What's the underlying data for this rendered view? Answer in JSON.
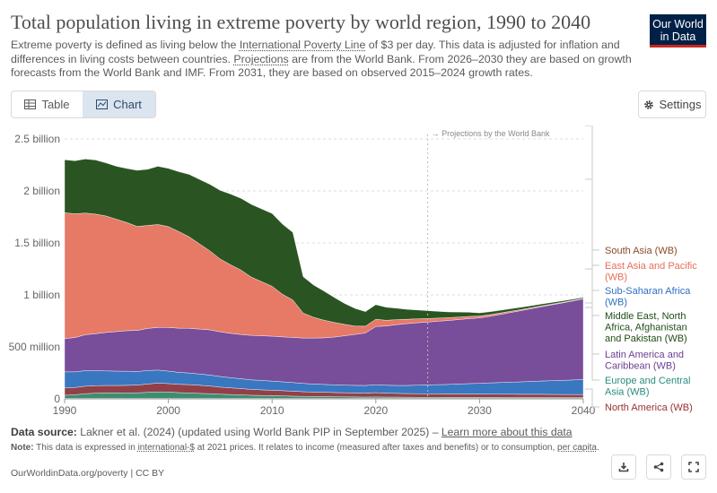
{
  "header": {
    "title": "Total population living in extreme poverty by world region, 1990 to 2040",
    "subtitle_1": "Extreme poverty is defined as living below the ",
    "subtitle_link_1": "International Poverty Line",
    "subtitle_2": " of $3 per day. This data is adjusted for inflation and differences in living costs between countries. ",
    "subtitle_link_2": "Projections",
    "subtitle_3": " are from the World Bank. From 2026–2030 they are based on growth forecasts from the World Bank and IMF. From 2031, they are based on observed 2015–2024 growth rates."
  },
  "logo": {
    "line1": "Our World",
    "line2": "in Data"
  },
  "controls": {
    "table_tab": "Table",
    "chart_tab": "Chart",
    "settings": "Settings"
  },
  "chart_data": {
    "type": "area",
    "stacked": true,
    "projection_label": "→ Projections by the World Bank",
    "projection_start": 2025,
    "xlim": [
      1990,
      2040
    ],
    "ylim": [
      0,
      2500000000
    ],
    "y_ticks": [
      {
        "value": 0,
        "label": "0"
      },
      {
        "value": 500000000,
        "label": "500 million"
      },
      {
        "value": 1000000000,
        "label": "1 billion"
      },
      {
        "value": 1500000000,
        "label": "1.5 billion"
      },
      {
        "value": 2000000000,
        "label": "2 billion"
      },
      {
        "value": 2500000000,
        "label": "2.5 billion"
      }
    ],
    "x_ticks": [
      {
        "value": 1990,
        "label": "1990"
      },
      {
        "value": 2000,
        "label": "2000"
      },
      {
        "value": 2010,
        "label": "2010"
      },
      {
        "value": 2020,
        "label": "2020"
      },
      {
        "value": 2030,
        "label": "2030"
      },
      {
        "value": 2040,
        "label": "2040"
      }
    ],
    "grid": true,
    "legend_position": "right",
    "x": [
      1990,
      1991,
      1992,
      1993,
      1994,
      1995,
      1996,
      1997,
      1998,
      1999,
      2000,
      2001,
      2002,
      2003,
      2004,
      2005,
      2006,
      2007,
      2008,
      2009,
      2010,
      2011,
      2012,
      2013,
      2014,
      2015,
      2016,
      2017,
      2018,
      2019,
      2020,
      2021,
      2022,
      2023,
      2024,
      2025,
      2026,
      2027,
      2028,
      2029,
      2030,
      2031,
      2032,
      2033,
      2034,
      2035,
      2036,
      2037,
      2038,
      2039,
      2040
    ],
    "series": [
      {
        "name": "North America (WB)",
        "color": "#9a5129",
        "values": [
          5,
          5,
          5,
          5,
          5,
          5,
          5,
          5,
          5,
          5,
          5,
          5,
          5,
          5,
          5,
          5,
          5,
          5,
          5,
          5,
          5,
          5,
          5,
          5,
          5,
          5,
          5,
          5,
          5,
          5,
          5,
          5,
          5,
          5,
          5,
          5,
          5,
          5,
          5,
          5,
          5,
          5,
          5,
          5,
          5,
          5,
          5,
          5,
          5,
          5,
          5
        ]
      },
      {
        "name": "Europe and Central Asia (WB)",
        "color": "#2c8465",
        "values": [
          30,
          35,
          45,
          50,
          52,
          52,
          53,
          53,
          58,
          62,
          62,
          55,
          52,
          48,
          45,
          40,
          37,
          34,
          30,
          28,
          26,
          24,
          21,
          19,
          18,
          17,
          15,
          14,
          13,
          12,
          13,
          12,
          12,
          11,
          10,
          10,
          10,
          9,
          9,
          9,
          9,
          9,
          8,
          8,
          8,
          8,
          8,
          8,
          7,
          7,
          7
        ]
      },
      {
        "name": "Latin America and Caribbean (WB)",
        "color": "#883039",
        "values": [
          70,
          70,
          72,
          72,
          72,
          72,
          72,
          75,
          80,
          85,
          80,
          80,
          80,
          78,
          74,
          68,
          64,
          60,
          56,
          54,
          52,
          50,
          48,
          45,
          42,
          42,
          41,
          40,
          38,
          37,
          42,
          38,
          36,
          35,
          35,
          34,
          34,
          33,
          33,
          33,
          32,
          32,
          32,
          32,
          31,
          31,
          31,
          30,
          30,
          30,
          30
        ]
      },
      {
        "name": "Middle East, North Africa, Afghanistan and Pakistan (WB)",
        "color": "#286bbb",
        "values": [
          155,
          150,
          150,
          145,
          140,
          138,
          136,
          130,
          130,
          125,
          120,
          115,
          112,
          108,
          105,
          102,
          98,
          95,
          92,
          90,
          88,
          85,
          83,
          80,
          78,
          75,
          74,
          73,
          74,
          75,
          76,
          76,
          76,
          78,
          82,
          85,
          88,
          92,
          96,
          100,
          103,
          108,
          112,
          116,
          120,
          124,
          128,
          132,
          136,
          140,
          145
        ]
      },
      {
        "name": "Sub-Saharan Africa (WB)",
        "color": "#6d3e91",
        "values": [
          320,
          330,
          345,
          355,
          370,
          380,
          390,
          395,
          405,
          410,
          420,
          425,
          430,
          432,
          435,
          430,
          426,
          425,
          428,
          430,
          432,
          432,
          434,
          436,
          442,
          448,
          460,
          475,
          490,
          505,
          560,
          570,
          585,
          595,
          600,
          605,
          610,
          615,
          620,
          625,
          630,
          640,
          655,
          670,
          685,
          700,
          715,
          730,
          745,
          760,
          775
        ]
      },
      {
        "name": "East Asia and Pacific (WB)",
        "color": "#e56e5a",
        "values": [
          1210,
          1190,
          1170,
          1150,
          1120,
          1080,
          1040,
          1000,
          990,
          990,
          970,
          930,
          880,
          820,
          760,
          700,
          660,
          620,
          560,
          520,
          480,
          410,
          360,
          240,
          200,
          170,
          140,
          110,
          80,
          65,
          70,
          55,
          48,
          42,
          38,
          34,
          30,
          27,
          24,
          21,
          18,
          16,
          14,
          12,
          10,
          9,
          8,
          7,
          6,
          5,
          4
        ]
      },
      {
        "name": "South Asia (WB)",
        "color": "#18470f",
        "values": [
          510,
          510,
          520,
          520,
          510,
          510,
          520,
          540,
          540,
          560,
          560,
          575,
          600,
          620,
          640,
          660,
          680,
          690,
          700,
          700,
          700,
          675,
          650,
          350,
          310,
          280,
          240,
          200,
          170,
          140,
          140,
          125,
          110,
          95,
          85,
          75,
          65,
          55,
          48,
          40,
          30,
          28,
          26,
          24,
          22,
          20,
          18,
          16,
          14,
          12,
          10
        ]
      }
    ],
    "legend": [
      {
        "label_lines": [
          "South Asia (WB)"
        ],
        "color": "#8b4a27"
      },
      {
        "label_lines": [
          "East Asia and Pacific",
          "(WB)"
        ],
        "color": "#e56e5a"
      },
      {
        "label_lines": [
          "Sub-Saharan Africa",
          "(WB)"
        ],
        "color": "#2c6fc1"
      },
      {
        "label_lines": [
          "Middle East, North",
          "Africa, Afghanistan",
          "and Pakistan (WB)"
        ],
        "color": "#1f4d16"
      },
      {
        "label_lines": [
          "Latin America and",
          "Caribbean (WB)"
        ],
        "color": "#6d3e91"
      },
      {
        "label_lines": [
          "Europe and Central",
          "Asia (WB)"
        ],
        "color": "#2a8b7d"
      },
      {
        "label_lines": [
          "North America (WB)"
        ],
        "color": "#9a2f2f"
      }
    ]
  },
  "footer": {
    "source_label": "Data source:",
    "source_text": " Lakner et al. (2024) (updated using World Bank PIP in September 2025) – ",
    "source_link": "Learn more about this data",
    "note_label": "Note:",
    "note_text_1": " This data is expressed in ",
    "note_link": "international-$",
    "note_text_2": " at 2021 prices. It relates to income (measured after taxes and benefits) or to consumption, ",
    "note_link_2": "per capita",
    "note_text_3": ".",
    "credit": "OurWorldinData.org/poverty | CC BY"
  }
}
